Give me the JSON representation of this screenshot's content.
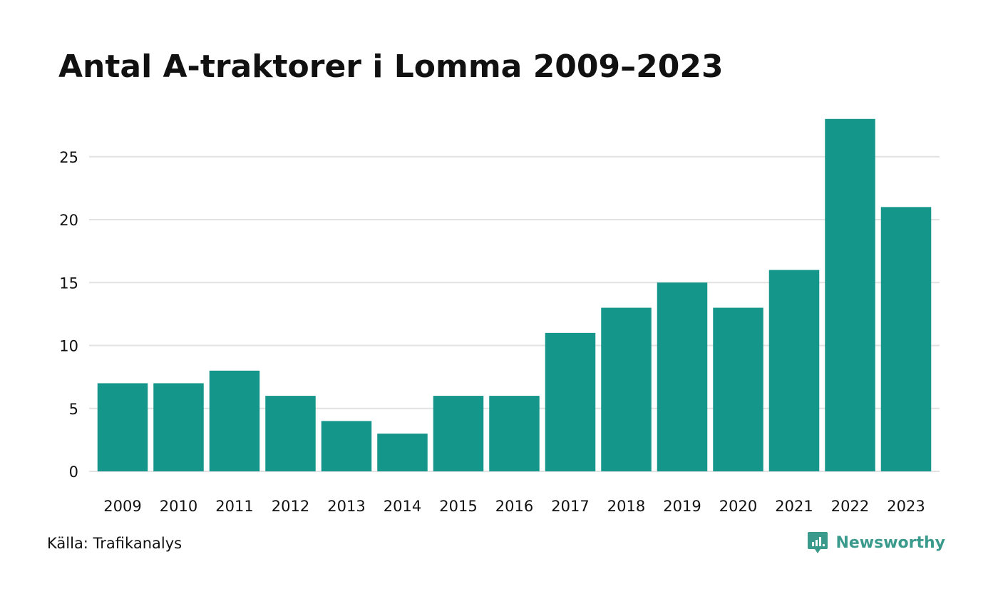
{
  "chart_data": {
    "type": "bar",
    "title": "Antal A-traktorer i Lomma 2009–2023",
    "categories": [
      "2009",
      "2010",
      "2011",
      "2012",
      "2013",
      "2014",
      "2015",
      "2016",
      "2017",
      "2018",
      "2019",
      "2020",
      "2021",
      "2022",
      "2023"
    ],
    "values": [
      7,
      7,
      8,
      6,
      4,
      3,
      6,
      6,
      11,
      13,
      15,
      13,
      16,
      28,
      21
    ],
    "yticks": [
      "0",
      "5",
      "10",
      "15",
      "20",
      "25"
    ],
    "ylim": [
      0,
      28
    ],
    "xlabel": "",
    "ylabel": "",
    "grid": true,
    "bar_color": "#15968a",
    "grid_color": "#e2e2e2"
  },
  "footer": {
    "source": "Källa: Trafikanalys",
    "brand": "Newsworthy",
    "brand_icon": "newsworthy-logo-icon",
    "brand_color": "#3a9a8c"
  }
}
